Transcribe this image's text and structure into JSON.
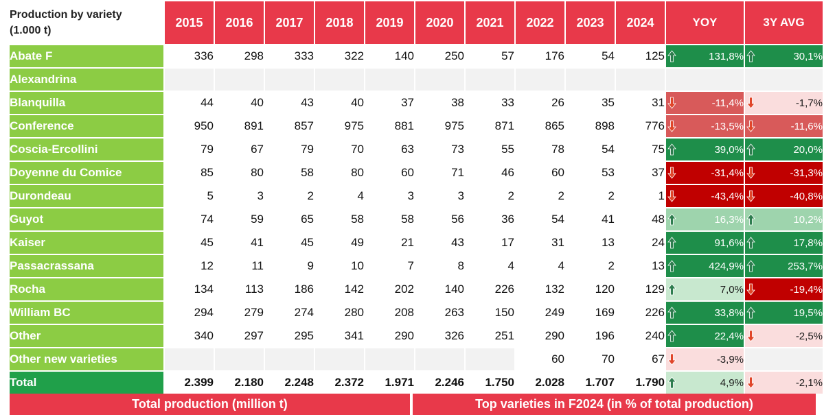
{
  "header": {
    "title_line1": "Production by variety",
    "title_line2": "(1.000 t)",
    "years": [
      "2015",
      "2016",
      "2017",
      "2018",
      "2019",
      "2020",
      "2021",
      "2022",
      "2023",
      "2024"
    ],
    "yoy_label": "YOY",
    "avg_label": "3Y AVG"
  },
  "rows": [
    {
      "name": "Abate F",
      "values": [
        "336",
        "298",
        "333",
        "322",
        "140",
        "250",
        "57",
        "176",
        "54",
        "125"
      ],
      "yoy": "131,8%",
      "yoy_dir": "up",
      "yoy_tone": "strong",
      "avg": "30,1%",
      "avg_dir": "up",
      "avg_tone": "strong"
    },
    {
      "name": "Alexandrina",
      "values": [
        "",
        "",
        "",
        "",
        "",
        "",
        "",
        "",
        "",
        ""
      ],
      "yoy": "",
      "yoy_dir": "none",
      "yoy_tone": "none",
      "avg": "",
      "avg_dir": "none",
      "avg_tone": "none"
    },
    {
      "name": "Blanquilla",
      "values": [
        "44",
        "40",
        "43",
        "40",
        "37",
        "38",
        "33",
        "26",
        "35",
        "31"
      ],
      "yoy": "-11,4%",
      "yoy_dir": "down",
      "yoy_tone": "med",
      "avg": "-1,7%",
      "avg_dir": "down",
      "avg_tone": "pale"
    },
    {
      "name": "Conference",
      "values": [
        "950",
        "891",
        "857",
        "975",
        "881",
        "975",
        "871",
        "865",
        "898",
        "776"
      ],
      "yoy": "-13,5%",
      "yoy_dir": "down",
      "yoy_tone": "med",
      "avg": "-11,6%",
      "avg_dir": "down",
      "avg_tone": "med"
    },
    {
      "name": "Coscia-Ercollini",
      "values": [
        "79",
        "67",
        "79",
        "70",
        "63",
        "73",
        "55",
        "78",
        "54",
        "75"
      ],
      "yoy": "39,0%",
      "yoy_dir": "up",
      "yoy_tone": "strong",
      "avg": "20,0%",
      "avg_dir": "up",
      "avg_tone": "strong"
    },
    {
      "name": "Doyenne du Comice",
      "values": [
        "85",
        "80",
        "58",
        "80",
        "60",
        "71",
        "46",
        "60",
        "53",
        "37"
      ],
      "yoy": "-31,4%",
      "yoy_dir": "down",
      "yoy_tone": "strong",
      "avg": "-31,3%",
      "avg_dir": "down",
      "avg_tone": "strong"
    },
    {
      "name": "Durondeau",
      "values": [
        "5",
        "3",
        "2",
        "4",
        "3",
        "3",
        "2",
        "2",
        "2",
        "1"
      ],
      "yoy": "-43,4%",
      "yoy_dir": "down",
      "yoy_tone": "strong",
      "avg": "-40,8%",
      "avg_dir": "down",
      "avg_tone": "strong"
    },
    {
      "name": "Guyot",
      "values": [
        "74",
        "59",
        "65",
        "58",
        "58",
        "56",
        "36",
        "54",
        "41",
        "48"
      ],
      "yoy": "16,3%",
      "yoy_dir": "up",
      "yoy_tone": "light",
      "avg": "10,2%",
      "avg_dir": "up",
      "avg_tone": "light"
    },
    {
      "name": "Kaiser",
      "values": [
        "45",
        "41",
        "45",
        "49",
        "21",
        "43",
        "17",
        "31",
        "13",
        "24"
      ],
      "yoy": "91,6%",
      "yoy_dir": "up",
      "yoy_tone": "strong",
      "avg": "17,8%",
      "avg_dir": "up",
      "avg_tone": "strong"
    },
    {
      "name": "Passacrassana",
      "values": [
        "12",
        "11",
        "9",
        "10",
        "7",
        "8",
        "4",
        "4",
        "2",
        "13"
      ],
      "yoy": "424,9%",
      "yoy_dir": "up",
      "yoy_tone": "strong",
      "avg": "253,7%",
      "avg_dir": "up",
      "avg_tone": "strong"
    },
    {
      "name": "Rocha",
      "values": [
        "134",
        "113",
        "186",
        "142",
        "202",
        "140",
        "226",
        "132",
        "120",
        "129"
      ],
      "yoy": "7,0%",
      "yoy_dir": "up",
      "yoy_tone": "pale",
      "avg": "-19,4%",
      "avg_dir": "down",
      "avg_tone": "strong"
    },
    {
      "name": "William BC",
      "values": [
        "294",
        "279",
        "274",
        "280",
        "208",
        "263",
        "150",
        "249",
        "169",
        "226"
      ],
      "yoy": "33,8%",
      "yoy_dir": "up",
      "yoy_tone": "strong",
      "avg": "19,5%",
      "avg_dir": "up",
      "avg_tone": "strong"
    },
    {
      "name": "Other",
      "values": [
        "340",
        "297",
        "295",
        "341",
        "290",
        "326",
        "251",
        "290",
        "196",
        "240"
      ],
      "yoy": "22,4%",
      "yoy_dir": "up",
      "yoy_tone": "strong",
      "avg": "-2,5%",
      "avg_dir": "down",
      "avg_tone": "pale"
    },
    {
      "name": "Other new varieties",
      "values": [
        "",
        "",
        "",
        "",
        "",
        "",
        "",
        "60",
        "70",
        "67"
      ],
      "yoy": "-3,9%",
      "yoy_dir": "down",
      "yoy_tone": "pale",
      "avg": "",
      "avg_dir": "none",
      "avg_tone": "pale"
    },
    {
      "name": "Total",
      "values": [
        "2.399",
        "2.180",
        "2.248",
        "2.372",
        "1.971",
        "2.246",
        "1.750",
        "2.028",
        "1.707",
        "1.790"
      ],
      "yoy": "4,9%",
      "yoy_dir": "up",
      "yoy_tone": "pale",
      "avg": "-2,1%",
      "avg_dir": "down",
      "avg_tone": "pale",
      "is_total": true
    }
  ],
  "footer": {
    "left": "Total production (million t)",
    "right": "Top varieties in F2024 (in % of total production)"
  },
  "colors": {
    "header_red": "#e8394a",
    "label_green": "#8ccc44",
    "total_green": "#20a04a",
    "up_arrow": "#2e7d4f",
    "down_arrow": "#e0462a"
  },
  "icons": {
    "up": "arrow-up-icon",
    "down": "arrow-down-icon"
  }
}
